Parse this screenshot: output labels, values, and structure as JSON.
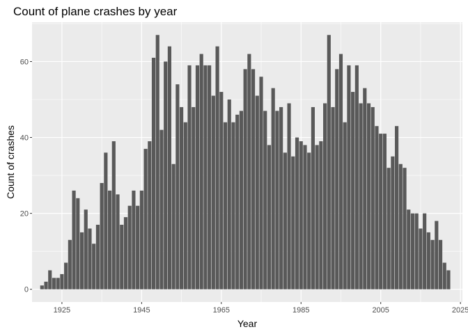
{
  "chart_data": {
    "type": "bar",
    "title": "Count of plane crashes by year",
    "xlabel": "Year",
    "ylabel": "Count of crashes",
    "x": [
      1920,
      1921,
      1922,
      1923,
      1924,
      1925,
      1926,
      1927,
      1928,
      1929,
      1930,
      1931,
      1932,
      1933,
      1934,
      1935,
      1936,
      1937,
      1938,
      1939,
      1940,
      1941,
      1942,
      1943,
      1944,
      1945,
      1946,
      1947,
      1948,
      1949,
      1950,
      1951,
      1952,
      1953,
      1954,
      1955,
      1956,
      1957,
      1958,
      1959,
      1960,
      1961,
      1962,
      1963,
      1964,
      1965,
      1966,
      1967,
      1968,
      1969,
      1970,
      1971,
      1972,
      1973,
      1974,
      1975,
      1976,
      1977,
      1978,
      1979,
      1980,
      1981,
      1982,
      1983,
      1984,
      1985,
      1986,
      1987,
      1988,
      1989,
      1990,
      1991,
      1992,
      1993,
      1994,
      1995,
      1996,
      1997,
      1998,
      1999,
      2000,
      2001,
      2002,
      2003,
      2004,
      2005,
      2006,
      2007,
      2008,
      2009,
      2010,
      2011,
      2012,
      2013,
      2014,
      2015,
      2016,
      2017,
      2018,
      2019,
      2020,
      2021,
      2022
    ],
    "values": [
      1,
      2,
      5,
      3,
      3,
      4,
      7,
      13,
      26,
      24,
      15,
      21,
      16,
      12,
      17,
      28,
      36,
      26,
      39,
      25,
      17,
      19,
      22,
      26,
      22,
      26,
      37,
      39,
      61,
      67,
      42,
      60,
      64,
      33,
      54,
      48,
      44,
      59,
      48,
      59,
      62,
      59,
      59,
      51,
      64,
      52,
      44,
      50,
      44,
      46,
      47,
      58,
      62,
      58,
      51,
      56,
      47,
      38,
      53,
      47,
      48,
      36,
      49,
      35,
      40,
      39,
      38,
      36,
      48,
      38,
      39,
      49,
      67,
      48,
      58,
      62,
      44,
      59,
      52,
      59,
      49,
      53,
      49,
      48,
      43,
      41,
      41,
      32,
      35,
      43,
      33,
      32,
      21,
      20,
      20,
      16,
      20,
      15,
      13,
      18,
      13,
      7,
      5
    ],
    "xticks": [
      1925,
      1945,
      1965,
      1985,
      2005,
      2025
    ],
    "yticks": [
      0,
      20,
      40,
      60
    ],
    "xlim": [
      1917.5,
      2025.5
    ],
    "ylim": [
      -3.35,
      70.35
    ],
    "grid": true,
    "bar_color": "#595959",
    "panel_color": "#ebebeb",
    "grid_color": "#ffffff"
  }
}
